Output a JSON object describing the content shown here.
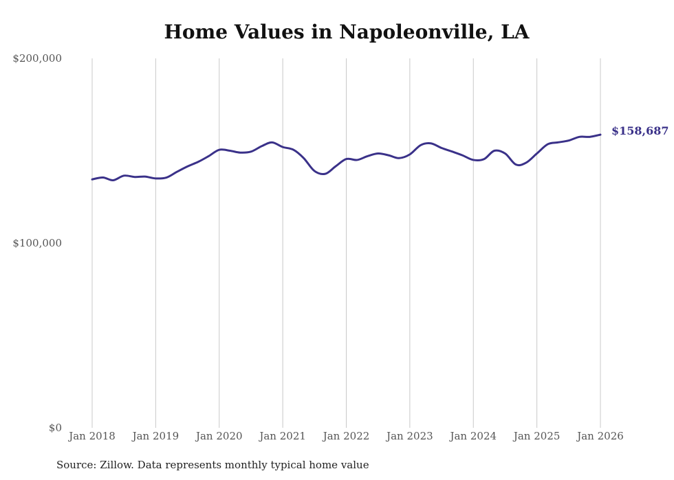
{
  "chart_data": {
    "type": "line",
    "title": "Home Values in Napoleonville, LA",
    "xlabel": "",
    "ylabel": "",
    "ylim": [
      0,
      200000
    ],
    "y_ticks": [
      {
        "value": 0,
        "label": "$0"
      },
      {
        "value": 100000,
        "label": "$100,000"
      },
      {
        "value": 200000,
        "label": "$200,000"
      }
    ],
    "x_ticks": [
      {
        "value": 2018.0,
        "label": "Jan 2018"
      },
      {
        "value": 2019.0,
        "label": "Jan 2019"
      },
      {
        "value": 2020.0,
        "label": "Jan 2020"
      },
      {
        "value": 2021.0,
        "label": "Jan 2021"
      },
      {
        "value": 2022.0,
        "label": "Jan 2022"
      },
      {
        "value": 2023.0,
        "label": "Jan 2023"
      },
      {
        "value": 2024.0,
        "label": "Jan 2024"
      },
      {
        "value": 2025.0,
        "label": "Jan 2025"
      },
      {
        "value": 2026.0,
        "label": "Jan 2026"
      }
    ],
    "xlim": [
      2018.0,
      2026.0
    ],
    "grid": "vertical",
    "legend": "none",
    "series": [
      {
        "name": "Typical home value",
        "color": "#3a3189",
        "x": [
          2018.0,
          2018.17,
          2018.33,
          2018.5,
          2018.67,
          2018.83,
          2019.0,
          2019.17,
          2019.33,
          2019.5,
          2019.67,
          2019.83,
          2020.0,
          2020.17,
          2020.33,
          2020.5,
          2020.67,
          2020.83,
          2021.0,
          2021.17,
          2021.33,
          2021.5,
          2021.67,
          2021.83,
          2022.0,
          2022.17,
          2022.33,
          2022.5,
          2022.67,
          2022.83,
          2023.0,
          2023.17,
          2023.33,
          2023.5,
          2023.67,
          2023.83,
          2024.0,
          2024.17,
          2024.33,
          2024.5,
          2024.67,
          2024.83,
          2025.0,
          2025.17,
          2025.33,
          2025.5,
          2025.67,
          2025.83,
          2026.0
        ],
        "values": [
          134500,
          135500,
          134000,
          136500,
          135800,
          136000,
          135000,
          135500,
          138500,
          141500,
          144000,
          147000,
          150500,
          150000,
          149000,
          149500,
          152500,
          154500,
          152000,
          150500,
          146000,
          139000,
          137500,
          141500,
          145500,
          145000,
          147000,
          148500,
          147500,
          146000,
          148000,
          153000,
          154000,
          151500,
          149500,
          147500,
          145000,
          145500,
          150000,
          148500,
          142500,
          143500,
          148500,
          153500,
          154500,
          155500,
          157500,
          157500,
          158687
        ]
      }
    ],
    "end_label": "$158,687",
    "source": "Source: Zillow. Data represents monthly typical home value"
  }
}
